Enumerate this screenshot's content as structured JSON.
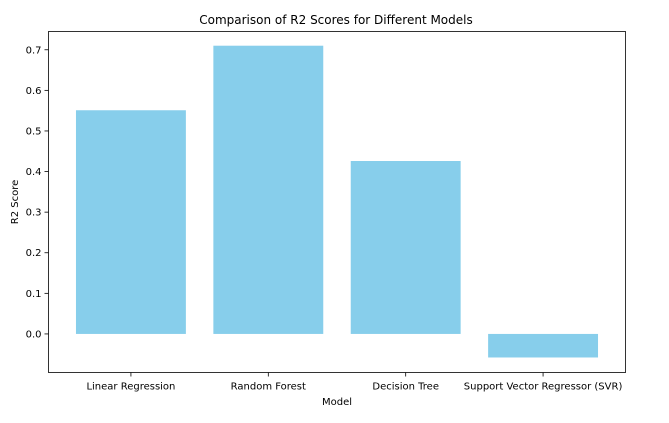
{
  "chart_data": {
    "type": "bar",
    "title": "Comparison of R2 Scores for Different Models",
    "xlabel": "Model",
    "ylabel": "R2 Score",
    "categories": [
      "Linear Regression",
      "Random Forest",
      "Decision Tree",
      "Support Vector Regressor (SVR)"
    ],
    "values": [
      0.551,
      0.71,
      0.426,
      -0.058
    ],
    "ylim": [
      -0.095,
      0.745
    ],
    "yticks": [
      "0.0",
      "0.1",
      "0.2",
      "0.3",
      "0.4",
      "0.5",
      "0.6",
      "0.7"
    ],
    "bar_color": "#87CEEB",
    "grid": false,
    "legend": "none"
  }
}
